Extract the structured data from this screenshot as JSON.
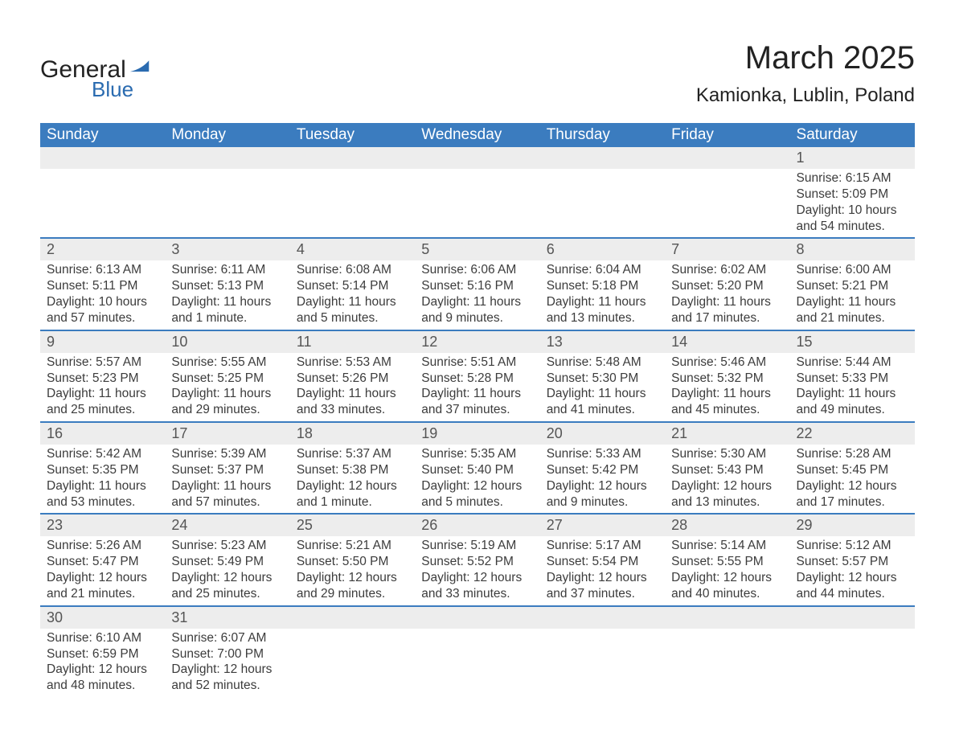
{
  "logo": {
    "text1": "General",
    "text2": "Blue",
    "color_dark": "#222222",
    "color_blue": "#2a6bb0"
  },
  "header": {
    "month": "March 2025",
    "location": "Kamionka, Lublin, Poland"
  },
  "style": {
    "header_bg": "#3b7cbf",
    "header_text": "#ffffff",
    "daynum_bg": "#ededed",
    "row_border": "#3b7cbf",
    "body_text": "#3c3c3c",
    "page_bg": "#ffffff",
    "month_fontsize": 40,
    "location_fontsize": 24,
    "dayheader_fontsize": 19,
    "cell_fontsize": 15.5
  },
  "dayHeaders": [
    "Sunday",
    "Monday",
    "Tuesday",
    "Wednesday",
    "Thursday",
    "Friday",
    "Saturday"
  ],
  "weeks": [
    {
      "bordered": false,
      "days": [
        null,
        null,
        null,
        null,
        null,
        null,
        {
          "n": "1",
          "sunrise": "Sunrise: 6:15 AM",
          "sunset": "Sunset: 5:09 PM",
          "dl1": "Daylight: 10 hours",
          "dl2": "and 54 minutes."
        }
      ]
    },
    {
      "bordered": true,
      "days": [
        {
          "n": "2",
          "sunrise": "Sunrise: 6:13 AM",
          "sunset": "Sunset: 5:11 PM",
          "dl1": "Daylight: 10 hours",
          "dl2": "and 57 minutes."
        },
        {
          "n": "3",
          "sunrise": "Sunrise: 6:11 AM",
          "sunset": "Sunset: 5:13 PM",
          "dl1": "Daylight: 11 hours",
          "dl2": "and 1 minute."
        },
        {
          "n": "4",
          "sunrise": "Sunrise: 6:08 AM",
          "sunset": "Sunset: 5:14 PM",
          "dl1": "Daylight: 11 hours",
          "dl2": "and 5 minutes."
        },
        {
          "n": "5",
          "sunrise": "Sunrise: 6:06 AM",
          "sunset": "Sunset: 5:16 PM",
          "dl1": "Daylight: 11 hours",
          "dl2": "and 9 minutes."
        },
        {
          "n": "6",
          "sunrise": "Sunrise: 6:04 AM",
          "sunset": "Sunset: 5:18 PM",
          "dl1": "Daylight: 11 hours",
          "dl2": "and 13 minutes."
        },
        {
          "n": "7",
          "sunrise": "Sunrise: 6:02 AM",
          "sunset": "Sunset: 5:20 PM",
          "dl1": "Daylight: 11 hours",
          "dl2": "and 17 minutes."
        },
        {
          "n": "8",
          "sunrise": "Sunrise: 6:00 AM",
          "sunset": "Sunset: 5:21 PM",
          "dl1": "Daylight: 11 hours",
          "dl2": "and 21 minutes."
        }
      ]
    },
    {
      "bordered": true,
      "days": [
        {
          "n": "9",
          "sunrise": "Sunrise: 5:57 AM",
          "sunset": "Sunset: 5:23 PM",
          "dl1": "Daylight: 11 hours",
          "dl2": "and 25 minutes."
        },
        {
          "n": "10",
          "sunrise": "Sunrise: 5:55 AM",
          "sunset": "Sunset: 5:25 PM",
          "dl1": "Daylight: 11 hours",
          "dl2": "and 29 minutes."
        },
        {
          "n": "11",
          "sunrise": "Sunrise: 5:53 AM",
          "sunset": "Sunset: 5:26 PM",
          "dl1": "Daylight: 11 hours",
          "dl2": "and 33 minutes."
        },
        {
          "n": "12",
          "sunrise": "Sunrise: 5:51 AM",
          "sunset": "Sunset: 5:28 PM",
          "dl1": "Daylight: 11 hours",
          "dl2": "and 37 minutes."
        },
        {
          "n": "13",
          "sunrise": "Sunrise: 5:48 AM",
          "sunset": "Sunset: 5:30 PM",
          "dl1": "Daylight: 11 hours",
          "dl2": "and 41 minutes."
        },
        {
          "n": "14",
          "sunrise": "Sunrise: 5:46 AM",
          "sunset": "Sunset: 5:32 PM",
          "dl1": "Daylight: 11 hours",
          "dl2": "and 45 minutes."
        },
        {
          "n": "15",
          "sunrise": "Sunrise: 5:44 AM",
          "sunset": "Sunset: 5:33 PM",
          "dl1": "Daylight: 11 hours",
          "dl2": "and 49 minutes."
        }
      ]
    },
    {
      "bordered": true,
      "days": [
        {
          "n": "16",
          "sunrise": "Sunrise: 5:42 AM",
          "sunset": "Sunset: 5:35 PM",
          "dl1": "Daylight: 11 hours",
          "dl2": "and 53 minutes."
        },
        {
          "n": "17",
          "sunrise": "Sunrise: 5:39 AM",
          "sunset": "Sunset: 5:37 PM",
          "dl1": "Daylight: 11 hours",
          "dl2": "and 57 minutes."
        },
        {
          "n": "18",
          "sunrise": "Sunrise: 5:37 AM",
          "sunset": "Sunset: 5:38 PM",
          "dl1": "Daylight: 12 hours",
          "dl2": "and 1 minute."
        },
        {
          "n": "19",
          "sunrise": "Sunrise: 5:35 AM",
          "sunset": "Sunset: 5:40 PM",
          "dl1": "Daylight: 12 hours",
          "dl2": "and 5 minutes."
        },
        {
          "n": "20",
          "sunrise": "Sunrise: 5:33 AM",
          "sunset": "Sunset: 5:42 PM",
          "dl1": "Daylight: 12 hours",
          "dl2": "and 9 minutes."
        },
        {
          "n": "21",
          "sunrise": "Sunrise: 5:30 AM",
          "sunset": "Sunset: 5:43 PM",
          "dl1": "Daylight: 12 hours",
          "dl2": "and 13 minutes."
        },
        {
          "n": "22",
          "sunrise": "Sunrise: 5:28 AM",
          "sunset": "Sunset: 5:45 PM",
          "dl1": "Daylight: 12 hours",
          "dl2": "and 17 minutes."
        }
      ]
    },
    {
      "bordered": true,
      "days": [
        {
          "n": "23",
          "sunrise": "Sunrise: 5:26 AM",
          "sunset": "Sunset: 5:47 PM",
          "dl1": "Daylight: 12 hours",
          "dl2": "and 21 minutes."
        },
        {
          "n": "24",
          "sunrise": "Sunrise: 5:23 AM",
          "sunset": "Sunset: 5:49 PM",
          "dl1": "Daylight: 12 hours",
          "dl2": "and 25 minutes."
        },
        {
          "n": "25",
          "sunrise": "Sunrise: 5:21 AM",
          "sunset": "Sunset: 5:50 PM",
          "dl1": "Daylight: 12 hours",
          "dl2": "and 29 minutes."
        },
        {
          "n": "26",
          "sunrise": "Sunrise: 5:19 AM",
          "sunset": "Sunset: 5:52 PM",
          "dl1": "Daylight: 12 hours",
          "dl2": "and 33 minutes."
        },
        {
          "n": "27",
          "sunrise": "Sunrise: 5:17 AM",
          "sunset": "Sunset: 5:54 PM",
          "dl1": "Daylight: 12 hours",
          "dl2": "and 37 minutes."
        },
        {
          "n": "28",
          "sunrise": "Sunrise: 5:14 AM",
          "sunset": "Sunset: 5:55 PM",
          "dl1": "Daylight: 12 hours",
          "dl2": "and 40 minutes."
        },
        {
          "n": "29",
          "sunrise": "Sunrise: 5:12 AM",
          "sunset": "Sunset: 5:57 PM",
          "dl1": "Daylight: 12 hours",
          "dl2": "and 44 minutes."
        }
      ]
    },
    {
      "bordered": true,
      "days": [
        {
          "n": "30",
          "sunrise": "Sunrise: 6:10 AM",
          "sunset": "Sunset: 6:59 PM",
          "dl1": "Daylight: 12 hours",
          "dl2": "and 48 minutes."
        },
        {
          "n": "31",
          "sunrise": "Sunrise: 6:07 AM",
          "sunset": "Sunset: 7:00 PM",
          "dl1": "Daylight: 12 hours",
          "dl2": "and 52 minutes."
        },
        null,
        null,
        null,
        null,
        null
      ]
    }
  ]
}
